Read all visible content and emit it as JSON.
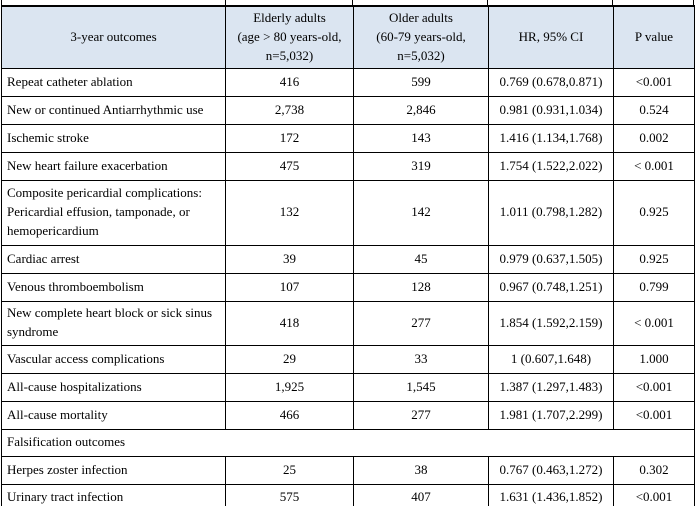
{
  "colors": {
    "header_bg": "#dbe5f1",
    "border": "#000000"
  },
  "header": {
    "outcomes": "3-year outcomes",
    "elderly": "Elderly adults\n(age > 80 years-old,\nn=5,032)",
    "older": "Older adults\n(60-79 years-old,\nn=5,032)",
    "hr": "HR, 95% CI",
    "p": "P value"
  },
  "rows": [
    {
      "outcome": "Repeat catheter ablation",
      "elderly": "416",
      "older": "599",
      "hr": "0.769 (0.678,0.871)",
      "p": "<0.001"
    },
    {
      "outcome": "New or continued Antiarrhythmic use",
      "elderly": "2,738",
      "older": "2,846",
      "hr": "0.981 (0.931,1.034)",
      "p": "0.524"
    },
    {
      "outcome": "Ischemic stroke",
      "elderly": "172",
      "older": "143",
      "hr": "1.416 (1.134,1.768)",
      "p": "0.002"
    },
    {
      "outcome": "New heart failure exacerbation",
      "elderly": "475",
      "older": "319",
      "hr": "1.754 (1.522,2.022)",
      "p": "< 0.001"
    },
    {
      "outcome": "Composite pericardial complications: Pericardial effusion, tamponade, or hemopericardium",
      "elderly": "132",
      "older": "142",
      "hr": "1.011 (0.798,1.282)",
      "p": "0.925"
    },
    {
      "outcome": "Cardiac arrest",
      "elderly": "39",
      "older": "45",
      "hr": "0.979 (0.637,1.505)",
      "p": "0.925"
    },
    {
      "outcome": "Venous thromboembolism",
      "elderly": "107",
      "older": "128",
      "hr": "0.967 (0.748,1.251)",
      "p": "0.799"
    },
    {
      "outcome": "New complete heart block or sick sinus syndrome",
      "elderly": "418",
      "older": "277",
      "hr": "1.854 (1.592,2.159)",
      "p": "< 0.001"
    },
    {
      "outcome": "Vascular access complications",
      "elderly": "29",
      "older": "33",
      "hr": "1 (0.607,1.648)",
      "p": "1.000"
    },
    {
      "outcome": "All-cause hospitalizations",
      "elderly": "1,925",
      "older": "1,545",
      "hr": "1.387 (1.297,1.483)",
      "p": "<0.001"
    },
    {
      "outcome": "All-cause mortality",
      "elderly": "466",
      "older": "277",
      "hr": "1.981 (1.707,2.299)",
      "p": "<0.001"
    }
  ],
  "section": {
    "label": "Falsification outcomes"
  },
  "falsification_rows": [
    {
      "outcome": "Herpes zoster infection",
      "elderly": "25",
      "older": "38",
      "hr": "0.767 (0.463,1.272)",
      "p": "0.302"
    },
    {
      "outcome": "Urinary tract infection",
      "elderly": "575",
      "older": "407",
      "hr": "1.631 (1.436,1.852)",
      "p": "<0.001"
    }
  ]
}
